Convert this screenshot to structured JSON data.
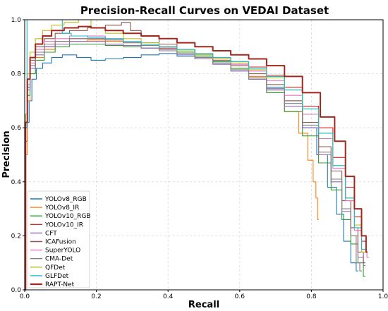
{
  "chart_data": {
    "type": "line",
    "title": "Precision-Recall Curves on VEDAI Dataset",
    "xlabel": "Recall",
    "ylabel": "Precision",
    "xlim": [
      0,
      1
    ],
    "ylim": [
      0,
      1
    ],
    "xticks": [
      "0.0",
      "0.2",
      "0.4",
      "0.6",
      "0.8",
      "1.0"
    ],
    "yticks": [
      "0.0",
      "0.2",
      "0.4",
      "0.6",
      "0.8",
      "1.0"
    ],
    "grid": true,
    "legend_position": "lower-left",
    "series": [
      {
        "name": "YOLOv8_RGB",
        "color": "#1f77b4",
        "width": 1.1,
        "points": [
          [
            0.0,
            0.0
          ],
          [
            0.005,
            0.55
          ],
          [
            0.01,
            0.62
          ],
          [
            0.015,
            0.7
          ],
          [
            0.025,
            0.78
          ],
          [
            0.04,
            0.82
          ],
          [
            0.06,
            0.84
          ],
          [
            0.09,
            0.86
          ],
          [
            0.12,
            0.87
          ],
          [
            0.17,
            0.86
          ],
          [
            0.2,
            0.85
          ],
          [
            0.25,
            0.855
          ],
          [
            0.3,
            0.86
          ],
          [
            0.35,
            0.87
          ],
          [
            0.4,
            0.875
          ],
          [
            0.45,
            0.865
          ],
          [
            0.5,
            0.855
          ],
          [
            0.55,
            0.84
          ],
          [
            0.6,
            0.82
          ],
          [
            0.65,
            0.79
          ],
          [
            0.7,
            0.75
          ],
          [
            0.75,
            0.7
          ],
          [
            0.8,
            0.6
          ],
          [
            0.83,
            0.5
          ],
          [
            0.86,
            0.38
          ],
          [
            0.88,
            0.28
          ],
          [
            0.9,
            0.18
          ],
          [
            0.92,
            0.1
          ],
          [
            0.93,
            0.07
          ]
        ]
      },
      {
        "name": "YOLOv8_IR",
        "color": "#ff7f0e",
        "width": 1.1,
        "points": [
          [
            0.0,
            0.0
          ],
          [
            0.005,
            0.5
          ],
          [
            0.01,
            0.7
          ],
          [
            0.02,
            0.8
          ],
          [
            0.04,
            0.86
          ],
          [
            0.07,
            0.89
          ],
          [
            0.1,
            0.91
          ],
          [
            0.15,
            0.92
          ],
          [
            0.2,
            0.925
          ],
          [
            0.25,
            0.92
          ],
          [
            0.3,
            0.915
          ],
          [
            0.35,
            0.91
          ],
          [
            0.4,
            0.9
          ],
          [
            0.45,
            0.89
          ],
          [
            0.5,
            0.87
          ],
          [
            0.55,
            0.85
          ],
          [
            0.6,
            0.82
          ],
          [
            0.65,
            0.79
          ],
          [
            0.7,
            0.74
          ],
          [
            0.75,
            0.66
          ],
          [
            0.78,
            0.58
          ],
          [
            0.8,
            0.48
          ],
          [
            0.81,
            0.4
          ],
          [
            0.815,
            0.34
          ],
          [
            0.82,
            0.26
          ]
        ]
      },
      {
        "name": "YOLOv10_RGB",
        "color": "#2ca02c",
        "width": 1.1,
        "points": [
          [
            0.0,
            0.0
          ],
          [
            0.005,
            0.6
          ],
          [
            0.01,
            0.72
          ],
          [
            0.02,
            0.8
          ],
          [
            0.04,
            0.85
          ],
          [
            0.07,
            0.88
          ],
          [
            0.1,
            0.9
          ],
          [
            0.15,
            0.91
          ],
          [
            0.2,
            0.91
          ],
          [
            0.25,
            0.905
          ],
          [
            0.3,
            0.9
          ],
          [
            0.35,
            0.895
          ],
          [
            0.4,
            0.89
          ],
          [
            0.45,
            0.88
          ],
          [
            0.5,
            0.865
          ],
          [
            0.55,
            0.845
          ],
          [
            0.6,
            0.82
          ],
          [
            0.65,
            0.78
          ],
          [
            0.7,
            0.73
          ],
          [
            0.75,
            0.66
          ],
          [
            0.8,
            0.57
          ],
          [
            0.84,
            0.47
          ],
          [
            0.87,
            0.37
          ],
          [
            0.9,
            0.26
          ],
          [
            0.92,
            0.17
          ],
          [
            0.94,
            0.1
          ],
          [
            0.95,
            0.05
          ]
        ]
      },
      {
        "name": "YOLOv10_IR",
        "color": "#d62728",
        "width": 1.1,
        "points": [
          [
            0.0,
            0.0
          ],
          [
            0.005,
            0.6
          ],
          [
            0.01,
            0.75
          ],
          [
            0.02,
            0.83
          ],
          [
            0.04,
            0.88
          ],
          [
            0.07,
            0.9
          ],
          [
            0.1,
            0.92
          ],
          [
            0.15,
            0.93
          ],
          [
            0.2,
            0.93
          ],
          [
            0.25,
            0.925
          ],
          [
            0.3,
            0.915
          ],
          [
            0.35,
            0.905
          ],
          [
            0.4,
            0.895
          ],
          [
            0.45,
            0.885
          ],
          [
            0.5,
            0.875
          ],
          [
            0.55,
            0.86
          ],
          [
            0.6,
            0.845
          ],
          [
            0.65,
            0.825
          ],
          [
            0.7,
            0.795
          ],
          [
            0.75,
            0.75
          ],
          [
            0.8,
            0.68
          ],
          [
            0.84,
            0.6
          ],
          [
            0.88,
            0.49
          ],
          [
            0.91,
            0.38
          ],
          [
            0.93,
            0.27
          ],
          [
            0.95,
            0.18
          ],
          [
            0.955,
            0.14
          ]
        ]
      },
      {
        "name": "CFT",
        "color": "#9467bd",
        "width": 1.1,
        "points": [
          [
            0.0,
            0.0
          ],
          [
            0.005,
            0.6
          ],
          [
            0.01,
            0.74
          ],
          [
            0.02,
            0.82
          ],
          [
            0.04,
            0.87
          ],
          [
            0.07,
            0.9
          ],
          [
            0.1,
            0.91
          ],
          [
            0.15,
            0.92
          ],
          [
            0.2,
            0.92
          ],
          [
            0.25,
            0.91
          ],
          [
            0.3,
            0.905
          ],
          [
            0.35,
            0.895
          ],
          [
            0.4,
            0.885
          ],
          [
            0.45,
            0.87
          ],
          [
            0.5,
            0.855
          ],
          [
            0.55,
            0.835
          ],
          [
            0.6,
            0.81
          ],
          [
            0.65,
            0.78
          ],
          [
            0.7,
            0.74
          ],
          [
            0.75,
            0.68
          ],
          [
            0.8,
            0.6
          ],
          [
            0.84,
            0.5
          ],
          [
            0.87,
            0.4
          ],
          [
            0.9,
            0.29
          ],
          [
            0.92,
            0.2
          ],
          [
            0.94,
            0.12
          ],
          [
            0.95,
            0.09
          ]
        ]
      },
      {
        "name": "ICAFusion",
        "color": "#8c564b",
        "width": 1.1,
        "points": [
          [
            0.0,
            0.0
          ],
          [
            0.005,
            0.65
          ],
          [
            0.01,
            0.78
          ],
          [
            0.02,
            0.85
          ],
          [
            0.04,
            0.9
          ],
          [
            0.07,
            0.93
          ],
          [
            0.1,
            0.95
          ],
          [
            0.15,
            0.96
          ],
          [
            0.2,
            0.97
          ],
          [
            0.25,
            0.98
          ],
          [
            0.29,
            0.99
          ],
          [
            0.3,
            0.96
          ],
          [
            0.35,
            0.94
          ],
          [
            0.4,
            0.91
          ],
          [
            0.45,
            0.89
          ],
          [
            0.5,
            0.87
          ],
          [
            0.55,
            0.85
          ],
          [
            0.6,
            0.83
          ],
          [
            0.65,
            0.8
          ],
          [
            0.7,
            0.76
          ],
          [
            0.75,
            0.7
          ],
          [
            0.8,
            0.62
          ],
          [
            0.84,
            0.53
          ],
          [
            0.87,
            0.44
          ],
          [
            0.9,
            0.33
          ],
          [
            0.92,
            0.23
          ],
          [
            0.94,
            0.14
          ],
          [
            0.95,
            0.1
          ]
        ]
      },
      {
        "name": "SuperYOLO",
        "color": "#e377c2",
        "width": 1.1,
        "points": [
          [
            0.0,
            0.0
          ],
          [
            0.005,
            0.6
          ],
          [
            0.01,
            0.76
          ],
          [
            0.02,
            0.84
          ],
          [
            0.04,
            0.89
          ],
          [
            0.07,
            0.92
          ],
          [
            0.1,
            0.93
          ],
          [
            0.15,
            0.94
          ],
          [
            0.2,
            0.94
          ],
          [
            0.25,
            0.93
          ],
          [
            0.3,
            0.92
          ],
          [
            0.35,
            0.91
          ],
          [
            0.4,
            0.9
          ],
          [
            0.45,
            0.885
          ],
          [
            0.5,
            0.87
          ],
          [
            0.55,
            0.855
          ],
          [
            0.6,
            0.835
          ],
          [
            0.65,
            0.81
          ],
          [
            0.7,
            0.775
          ],
          [
            0.75,
            0.72
          ],
          [
            0.8,
            0.65
          ],
          [
            0.84,
            0.56
          ],
          [
            0.88,
            0.45
          ],
          [
            0.91,
            0.33
          ],
          [
            0.93,
            0.22
          ],
          [
            0.95,
            0.14
          ],
          [
            0.96,
            0.12
          ]
        ]
      },
      {
        "name": "CMA-Det",
        "color": "#7f7f7f",
        "width": 1.1,
        "points": [
          [
            0.0,
            0.0
          ],
          [
            0.005,
            0.6
          ],
          [
            0.01,
            0.75
          ],
          [
            0.02,
            0.83
          ],
          [
            0.04,
            0.88
          ],
          [
            0.07,
            0.91
          ],
          [
            0.1,
            0.92
          ],
          [
            0.15,
            0.93
          ],
          [
            0.2,
            0.93
          ],
          [
            0.25,
            0.925
          ],
          [
            0.3,
            0.915
          ],
          [
            0.35,
            0.905
          ],
          [
            0.4,
            0.89
          ],
          [
            0.45,
            0.875
          ],
          [
            0.5,
            0.86
          ],
          [
            0.55,
            0.84
          ],
          [
            0.6,
            0.815
          ],
          [
            0.65,
            0.785
          ],
          [
            0.7,
            0.745
          ],
          [
            0.75,
            0.69
          ],
          [
            0.8,
            0.61
          ],
          [
            0.84,
            0.51
          ],
          [
            0.87,
            0.41
          ],
          [
            0.9,
            0.3
          ],
          [
            0.92,
            0.2
          ],
          [
            0.93,
            0.1
          ],
          [
            0.94,
            0.07
          ]
        ]
      },
      {
        "name": "QFDet",
        "color": "#bcbd22",
        "width": 1.1,
        "points": [
          [
            0.0,
            0.0
          ],
          [
            0.005,
            0.65
          ],
          [
            0.01,
            0.8
          ],
          [
            0.02,
            0.88
          ],
          [
            0.04,
            0.93
          ],
          [
            0.06,
            0.96
          ],
          [
            0.09,
            0.98
          ],
          [
            0.13,
            0.99
          ],
          [
            0.17,
            1.0
          ],
          [
            0.2,
            0.97
          ],
          [
            0.25,
            0.95
          ],
          [
            0.3,
            0.93
          ],
          [
            0.35,
            0.915
          ],
          [
            0.4,
            0.9
          ],
          [
            0.45,
            0.885
          ],
          [
            0.5,
            0.87
          ],
          [
            0.55,
            0.855
          ],
          [
            0.6,
            0.84
          ],
          [
            0.65,
            0.815
          ],
          [
            0.7,
            0.785
          ],
          [
            0.75,
            0.74
          ],
          [
            0.8,
            0.67
          ],
          [
            0.84,
            0.58
          ],
          [
            0.88,
            0.46
          ],
          [
            0.91,
            0.34
          ],
          [
            0.93,
            0.24
          ],
          [
            0.95,
            0.14
          ]
        ]
      },
      {
        "name": "GLFDet",
        "color": "#17becf",
        "width": 1.1,
        "points": [
          [
            0.0,
            0.0
          ],
          [
            0.005,
            0.6
          ],
          [
            0.008,
            1.0
          ],
          [
            0.1,
            1.0
          ],
          [
            0.11,
            0.95
          ],
          [
            0.15,
            0.94
          ],
          [
            0.2,
            0.935
          ],
          [
            0.25,
            0.93
          ],
          [
            0.3,
            0.92
          ],
          [
            0.35,
            0.91
          ],
          [
            0.4,
            0.9
          ],
          [
            0.45,
            0.89
          ],
          [
            0.5,
            0.875
          ],
          [
            0.55,
            0.86
          ],
          [
            0.6,
            0.845
          ],
          [
            0.65,
            0.82
          ],
          [
            0.7,
            0.79
          ],
          [
            0.75,
            0.74
          ],
          [
            0.8,
            0.67
          ],
          [
            0.84,
            0.58
          ],
          [
            0.88,
            0.46
          ],
          [
            0.91,
            0.34
          ],
          [
            0.93,
            0.23
          ],
          [
            0.95,
            0.15
          ]
        ]
      },
      {
        "name": "RAPT-Net",
        "color": "#a0281e",
        "width": 2.0,
        "points": [
          [
            0.0,
            0.0
          ],
          [
            0.005,
            0.62
          ],
          [
            0.01,
            0.78
          ],
          [
            0.02,
            0.86
          ],
          [
            0.04,
            0.91
          ],
          [
            0.06,
            0.94
          ],
          [
            0.09,
            0.96
          ],
          [
            0.13,
            0.97
          ],
          [
            0.17,
            0.975
          ],
          [
            0.2,
            0.97
          ],
          [
            0.25,
            0.96
          ],
          [
            0.3,
            0.95
          ],
          [
            0.35,
            0.94
          ],
          [
            0.4,
            0.93
          ],
          [
            0.45,
            0.915
          ],
          [
            0.5,
            0.9
          ],
          [
            0.55,
            0.885
          ],
          [
            0.6,
            0.87
          ],
          [
            0.65,
            0.855
          ],
          [
            0.7,
            0.83
          ],
          [
            0.75,
            0.79
          ],
          [
            0.8,
            0.73
          ],
          [
            0.85,
            0.64
          ],
          [
            0.88,
            0.55
          ],
          [
            0.91,
            0.42
          ],
          [
            0.93,
            0.3
          ],
          [
            0.95,
            0.2
          ],
          [
            0.955,
            0.14
          ]
        ]
      }
    ]
  }
}
